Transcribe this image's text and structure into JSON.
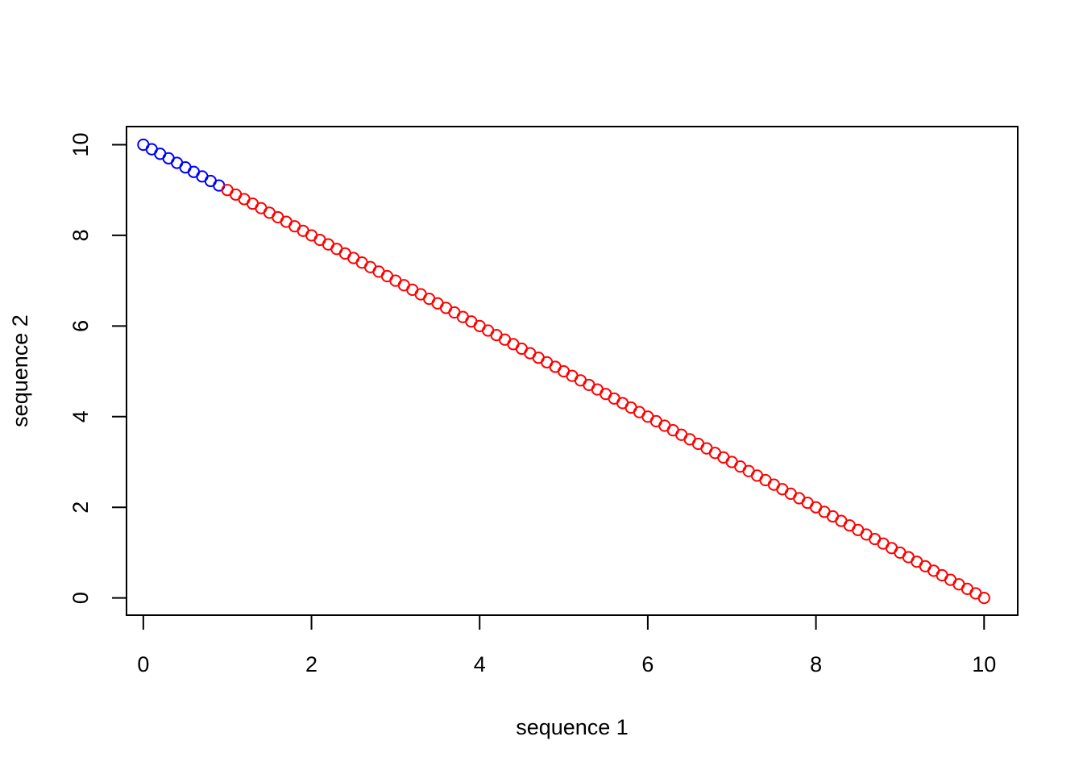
{
  "chart_data": {
    "type": "scatter",
    "title": "",
    "xlabel": "sequence 1",
    "ylabel": "sequence 2",
    "xlim": [
      -0.2,
      10.4
    ],
    "ylim": [
      -0.38,
      10.4
    ],
    "x_ticks": [
      0,
      2,
      4,
      6,
      8,
      10
    ],
    "y_ticks": [
      0,
      2,
      4,
      6,
      8,
      10
    ],
    "x_tick_labels": [
      "0",
      "2",
      "4",
      "6",
      "8",
      "10"
    ],
    "y_tick_labels": [
      "0",
      "2",
      "4",
      "6",
      "8",
      "10"
    ],
    "grid": false,
    "marker": "open-circle",
    "series": [
      {
        "color": "#0000ff",
        "x": [
          0.0,
          0.1,
          0.2,
          0.3,
          0.4,
          0.5,
          0.6,
          0.7,
          0.8,
          0.9
        ],
        "y": [
          10.0,
          9.9,
          9.8,
          9.7,
          9.6,
          9.5,
          9.4,
          9.3,
          9.2,
          9.1
        ]
      },
      {
        "color": "#ff0000",
        "x": [
          1.0,
          1.1,
          1.2,
          1.3,
          1.4,
          1.5,
          1.6,
          1.7,
          1.8,
          1.9,
          2.0,
          2.1,
          2.2,
          2.3,
          2.4,
          2.5,
          2.6,
          2.7,
          2.8,
          2.9,
          3.0,
          3.1,
          3.2,
          3.3,
          3.4,
          3.5,
          3.6,
          3.7,
          3.8,
          3.9,
          4.0,
          4.1,
          4.2,
          4.3,
          4.4,
          4.5,
          4.6,
          4.7,
          4.8,
          4.9,
          5.0,
          5.1,
          5.2,
          5.3,
          5.4,
          5.5,
          5.6,
          5.7,
          5.8,
          5.9,
          6.0,
          6.1,
          6.2,
          6.3,
          6.4,
          6.5,
          6.6,
          6.7,
          6.8,
          6.9,
          7.0,
          7.1,
          7.2,
          7.3,
          7.4,
          7.5,
          7.6,
          7.7,
          7.8,
          7.9,
          8.0,
          8.1,
          8.2,
          8.3,
          8.4,
          8.5,
          8.6,
          8.7,
          8.8,
          8.9,
          9.0,
          9.1,
          9.2,
          9.3,
          9.4,
          9.5,
          9.6,
          9.7,
          9.8,
          9.9,
          10.0
        ],
        "y": [
          9.0,
          8.9,
          8.8,
          8.7,
          8.6,
          8.5,
          8.4,
          8.3,
          8.2,
          8.1,
          8.0,
          7.9,
          7.8,
          7.7,
          7.6,
          7.5,
          7.4,
          7.3,
          7.2,
          7.1,
          7.0,
          6.9,
          6.8,
          6.7,
          6.6,
          6.5,
          6.4,
          6.3,
          6.2,
          6.1,
          6.0,
          5.9,
          5.8,
          5.7,
          5.6,
          5.5,
          5.4,
          5.3,
          5.2,
          5.1,
          5.0,
          4.9,
          4.8,
          4.7,
          4.6,
          4.5,
          4.4,
          4.3,
          4.2,
          4.1,
          4.0,
          3.9,
          3.8,
          3.7,
          3.6,
          3.5,
          3.4,
          3.3,
          3.2,
          3.1,
          3.0,
          2.9,
          2.8,
          2.7,
          2.6,
          2.5,
          2.4,
          2.3,
          2.2,
          2.1,
          2.0,
          1.9,
          1.8,
          1.7,
          1.6,
          1.5,
          1.4,
          1.3,
          1.2,
          1.1,
          1.0,
          0.9,
          0.8,
          0.7,
          0.6,
          0.5,
          0.4,
          0.3,
          0.2,
          0.1,
          0.0
        ]
      }
    ]
  }
}
